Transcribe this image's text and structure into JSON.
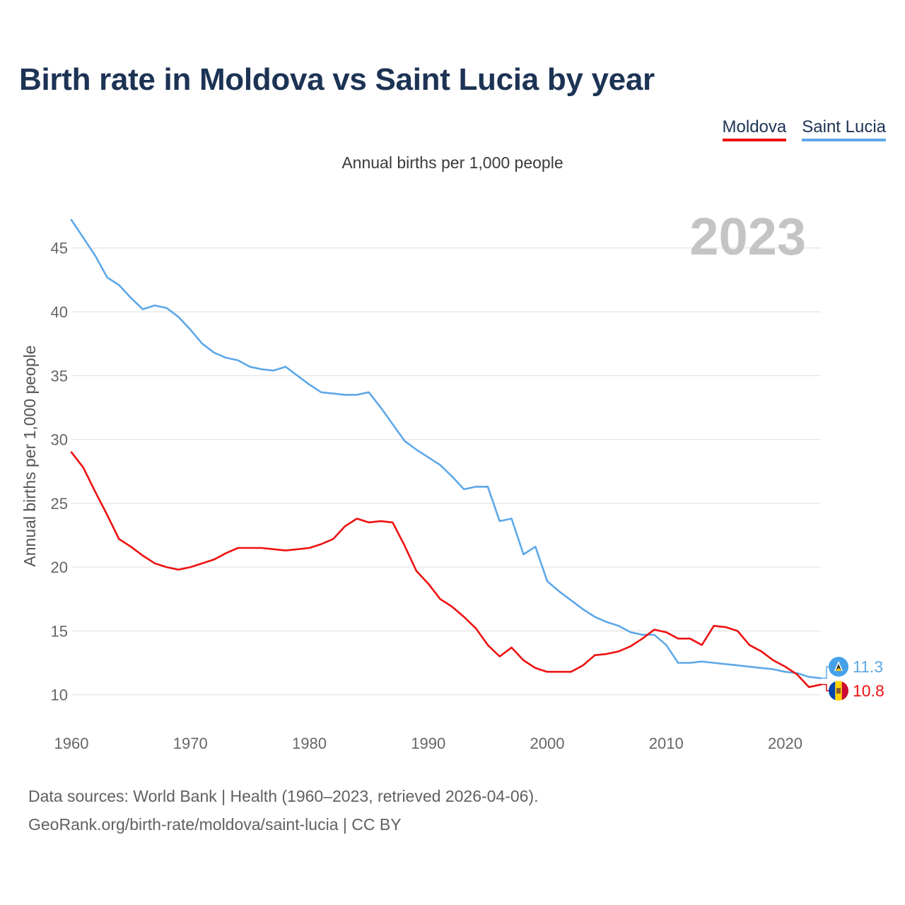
{
  "title": "Birth rate in Moldova vs Saint Lucia by year",
  "legend": [
    {
      "name": "Moldova",
      "color": "#ee1111"
    },
    {
      "name": "Saint Lucia",
      "color": "#5ea8e8"
    }
  ],
  "subtitle": "Annual births per 1,000 people",
  "year_watermark": "2023",
  "footer": {
    "line1": "Data sources: World Bank | Health (1960–2023, retrieved 2026-04-06).",
    "line2": "GeoRank.org/birth-rate/moldova/saint-lucia | CC BY"
  },
  "chart_data": {
    "type": "line",
    "title": "Birth rate in Moldova vs Saint Lucia by year",
    "xlabel": "",
    "ylabel": "Annual births per 1,000 people",
    "xlim": [
      1960,
      2023
    ],
    "ylim": [
      7.6,
      47.7
    ],
    "grid": true,
    "legend_position": "top-right",
    "x_ticks": [
      1960,
      1970,
      1980,
      1990,
      2000,
      2010,
      2020
    ],
    "y_ticks": [
      10,
      15,
      20,
      25,
      30,
      35,
      40,
      45
    ],
    "x": [
      1960,
      1961,
      1962,
      1963,
      1964,
      1965,
      1966,
      1967,
      1968,
      1969,
      1970,
      1971,
      1972,
      1973,
      1974,
      1975,
      1976,
      1977,
      1978,
      1979,
      1980,
      1981,
      1982,
      1983,
      1984,
      1985,
      1986,
      1987,
      1988,
      1989,
      1990,
      1991,
      1992,
      1993,
      1994,
      1995,
      1996,
      1997,
      1998,
      1999,
      2000,
      2001,
      2002,
      2003,
      2004,
      2005,
      2006,
      2007,
      2008,
      2009,
      2010,
      2011,
      2012,
      2013,
      2014,
      2015,
      2016,
      2017,
      2018,
      2019,
      2020,
      2021,
      2022,
      2023
    ],
    "series": [
      {
        "name": "Moldova",
        "color": "#ee1111",
        "end_label": "10.8",
        "values": [
          29.0,
          27.8,
          25.9,
          24.1,
          22.2,
          21.6,
          20.9,
          20.3,
          20.0,
          19.8,
          20.0,
          20.3,
          20.6,
          21.1,
          21.5,
          21.5,
          21.5,
          21.4,
          21.3,
          21.4,
          21.5,
          21.8,
          22.2,
          23.2,
          23.8,
          23.5,
          23.6,
          23.5,
          21.7,
          19.7,
          18.7,
          17.5,
          16.9,
          16.1,
          15.2,
          13.9,
          13.0,
          13.7,
          12.7,
          12.1,
          11.8,
          11.8,
          11.8,
          12.3,
          13.1,
          13.2,
          13.4,
          13.8,
          14.4,
          15.1,
          14.9,
          14.4,
          14.4,
          13.9,
          15.4,
          15.3,
          15.0,
          13.9,
          13.4,
          12.7,
          12.2,
          11.6,
          10.6,
          10.8
        ]
      },
      {
        "name": "Saint Lucia",
        "color": "#5ea8e8",
        "end_label": "11.3",
        "values": [
          47.2,
          45.8,
          44.4,
          42.7,
          42.1,
          41.1,
          40.2,
          40.5,
          40.3,
          39.6,
          38.6,
          37.5,
          36.8,
          36.4,
          36.2,
          35.7,
          35.5,
          35.4,
          35.7,
          35.0,
          34.3,
          33.7,
          33.6,
          33.5,
          33.5,
          33.7,
          32.5,
          31.2,
          29.9,
          29.2,
          28.6,
          28.0,
          27.1,
          26.1,
          26.3,
          26.3,
          23.6,
          23.8,
          21.0,
          21.6,
          18.9,
          18.1,
          17.4,
          16.7,
          16.1,
          15.7,
          15.4,
          14.9,
          14.7,
          14.7,
          13.9,
          12.5,
          12.5,
          12.6,
          12.5,
          12.4,
          12.3,
          12.2,
          12.1,
          12.0,
          11.8,
          11.7,
          11.4,
          11.3
        ]
      }
    ]
  }
}
